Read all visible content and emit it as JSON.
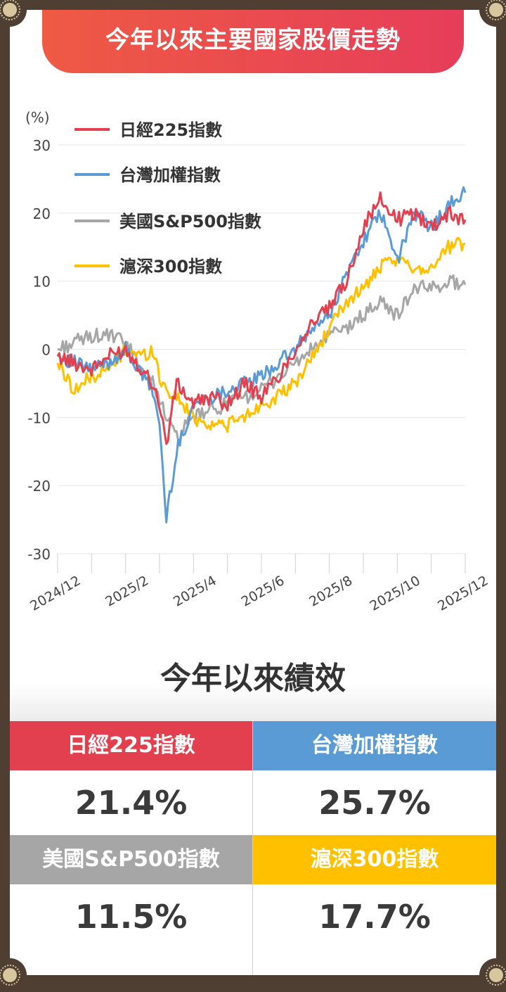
{
  "title": "今年以來主要國家股價走勢",
  "performance_title": "今年以來績效",
  "colors": {
    "border": "#4e3f32",
    "corner_ornament": "#d8c69e",
    "nikkei": "#e2404e",
    "taiwan": "#5b9bd5",
    "sp500": "#a6a6a6",
    "csi300": "#ffc000"
  },
  "performance": [
    {
      "label": "日經225指數",
      "value": "21.4%",
      "color": "#e2404e"
    },
    {
      "label": "台灣加權指數",
      "value": "25.7%",
      "color": "#5b9bd5"
    },
    {
      "label": "美國S&P500指數",
      "value": "11.5%",
      "color": "#a6a6a6"
    },
    {
      "label": "滬深300指數",
      "value": "17.7%",
      "color": "#ffc000"
    }
  ],
  "chart_data": {
    "type": "line",
    "title": "今年以來主要國家股價走勢",
    "ylabel": "(%)",
    "ylim": [
      -30,
      30
    ],
    "yticks": [
      "30",
      "20",
      "10",
      "0",
      "-10",
      "-20",
      "-30"
    ],
    "xticks": [
      "2024/12",
      "2025/2",
      "2025/4",
      "2025/6",
      "2025/8",
      "2025/10",
      "2025/12"
    ],
    "xlim": [
      0,
      12
    ],
    "grid": true,
    "legend_position": "top-left",
    "x_month_offsets": [
      0,
      0.5,
      1,
      1.5,
      2,
      2.5,
      2.8,
      3,
      3.2,
      3.5,
      4,
      4.5,
      5,
      5.5,
      6,
      6.5,
      7,
      7.5,
      8,
      8.5,
      9,
      9.5,
      10,
      10.5,
      11,
      11.5,
      12
    ],
    "series": [
      {
        "name": "日經225指數",
        "color": "#e2404e",
        "values": [
          -1,
          -2,
          -3,
          -1,
          0,
          -3,
          -5,
          -8,
          -14,
          -5,
          -8,
          -7,
          -8,
          -5,
          -7,
          -4,
          0,
          4,
          6,
          10,
          18,
          22,
          19,
          20,
          18,
          20,
          19
        ]
      },
      {
        "name": "台灣加權指數",
        "color": "#5b9bd5",
        "values": [
          -1,
          -2,
          -3,
          -2,
          0,
          -4,
          -6,
          -11,
          -25,
          -15,
          -8,
          -7,
          -6,
          -5,
          -4,
          -2,
          0,
          3,
          5,
          11,
          16,
          20,
          13,
          20,
          18,
          21,
          23
        ]
      },
      {
        "name": "美國S&P500指數",
        "color": "#a6a6a6",
        "values": [
          0,
          1,
          2,
          2,
          1,
          -3,
          -5,
          -7,
          -10,
          -13,
          -10,
          -9,
          -8,
          -7,
          -6,
          -4,
          -2,
          0,
          2,
          3,
          5,
          7,
          5,
          9,
          9,
          10,
          9.5
        ]
      },
      {
        "name": "滬深300指數",
        "color": "#ffc000",
        "values": [
          -2,
          -6,
          -4,
          -3,
          0,
          -1,
          0,
          -4,
          -6,
          -7,
          -10,
          -11,
          -11,
          -10,
          -8,
          -7,
          -5,
          -1,
          3,
          7,
          9,
          12,
          13,
          12,
          12,
          15,
          15.5
        ]
      }
    ]
  }
}
